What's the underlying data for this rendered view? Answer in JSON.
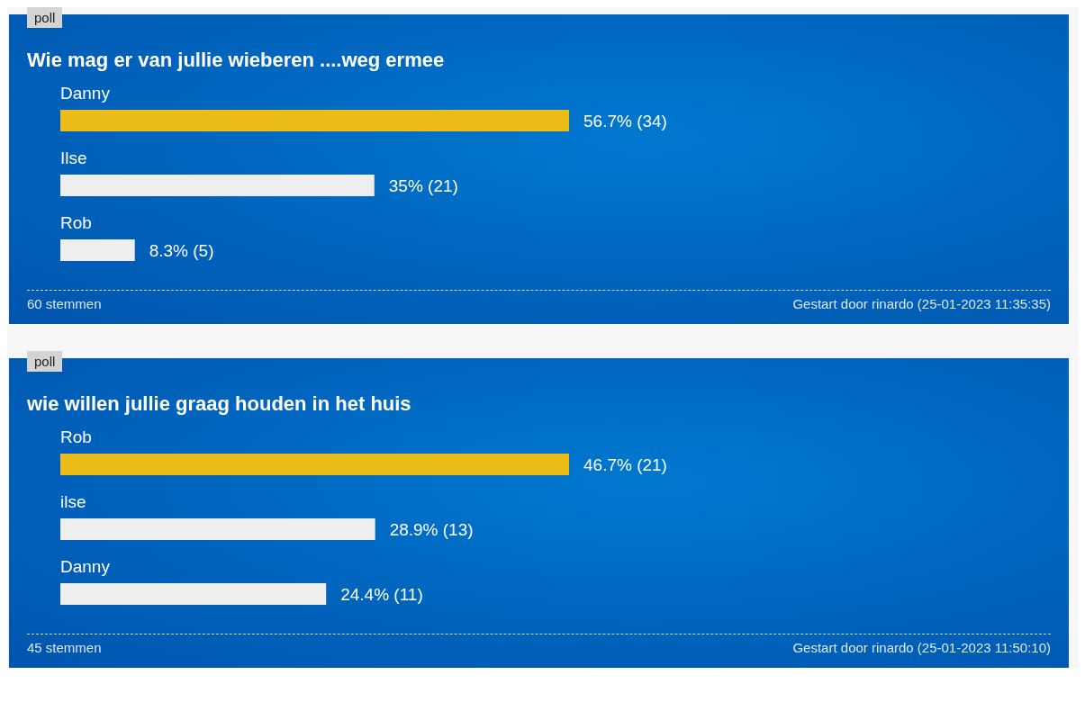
{
  "chart_data": [
    {
      "type": "bar",
      "orientation": "horizontal",
      "title": "Wie mag er van jullie wieberen ....weg ermee",
      "categories": [
        "Danny",
        "Ilse",
        "Rob"
      ],
      "values": [
        56.7,
        35,
        8.3
      ],
      "colors": [
        "#ecbc1a",
        "#eeeeee",
        "#eeeeee"
      ],
      "value_labels": [
        "56.7% (34)",
        "35% (21)",
        "8.3% (5)"
      ],
      "annotations": [
        "poll",
        "60 stemmen",
        "Gestart door rinardo (25-01-2023 11:35:35)"
      ]
    },
    {
      "type": "bar",
      "orientation": "horizontal",
      "title": "wie willen jullie graag houden in het huis",
      "categories": [
        "Rob",
        "ilse",
        "Danny"
      ],
      "values": [
        46.7,
        28.9,
        24.4
      ],
      "colors": [
        "#ecbc1a",
        "#eeeeee",
        "#eeeeee"
      ],
      "value_labels": [
        "46.7% (21)",
        "28.9% (13)",
        "24.4% (11)"
      ],
      "annotations": [
        "poll",
        "45 stemmen",
        "Gestart door rinardo (25-01-2023 11:50:10)"
      ]
    }
  ]
}
